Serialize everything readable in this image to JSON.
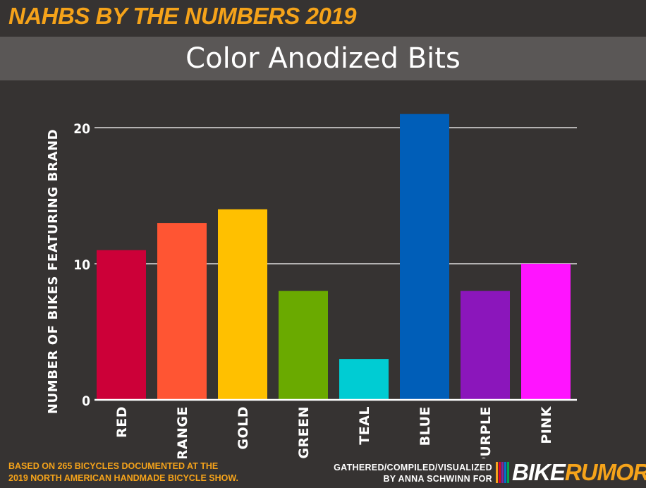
{
  "header": {
    "kicker": "NAHBS BY THE NUMBERS 2019",
    "title": "Color Anodized Bits"
  },
  "footer": {
    "source_line1": "BASED ON 265 BICYCLES DOCUMENTED AT THE",
    "source_line2": "2019 NORTH AMERICAN HANDMADE BICYCLE SHOW.",
    "credit_line1": "GATHERED/COMPILED/VISUALIZED",
    "credit_line2": "BY ANNA SCHWINN FOR",
    "logo_text_main": "BIKE",
    "logo_text_accent": "RUMOR",
    "logo_text_end": "!",
    "logo_stripe_colors": [
      "#f5a31a",
      "#e4002b",
      "#7a2ca0",
      "#0072ce",
      "#00a651"
    ]
  },
  "chart_data": {
    "type": "bar",
    "categories": [
      "RED",
      "ORANGE",
      "GOLD",
      "GREEN",
      "TEAL",
      "BLUE",
      "PURPLE",
      "PINK"
    ],
    "values": [
      11,
      13,
      14,
      8,
      3,
      21,
      8,
      10
    ],
    "colors": [
      "#cc0038",
      "#ff5533",
      "#ffc000",
      "#6aaa00",
      "#00ccd3",
      "#005eb8",
      "#8b16bb",
      "#ff14ff"
    ],
    "title": "Color Anodized Bits",
    "xlabel": "",
    "ylabel": "NUMBER OF BIKES FEATURING BRAND",
    "ylim": [
      0,
      22
    ],
    "yticks": [
      0,
      10,
      20
    ],
    "grid": true,
    "colors_theme": {
      "axis": "#ffffff",
      "grid": "#ffffff",
      "text": "#ffffff"
    }
  }
}
